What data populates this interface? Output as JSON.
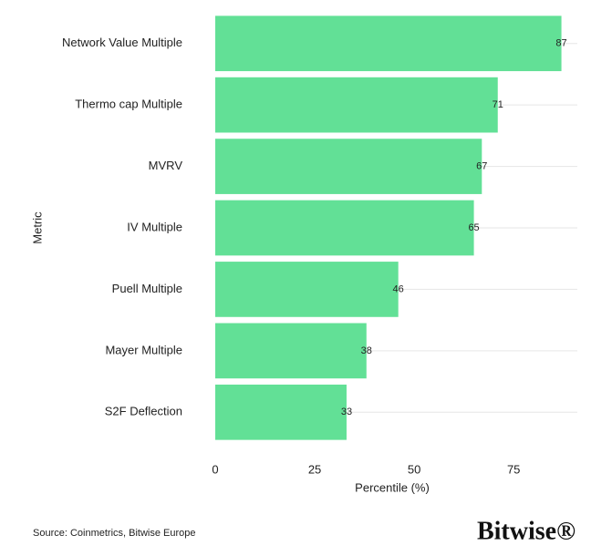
{
  "chart_data": {
    "type": "bar",
    "orientation": "horizontal",
    "categories": [
      "Network Value Multiple",
      "Thermo cap Multiple",
      "MVRV",
      "IV Multiple",
      "Puell Multiple",
      "Mayer Multiple",
      "S2F Deflection"
    ],
    "values": [
      87,
      71,
      67,
      65,
      46,
      38,
      33
    ],
    "color": "#62e096",
    "xlim": [
      0,
      91
    ],
    "xticks": [
      0,
      25,
      50,
      75
    ],
    "x_label": "Percentile (%)",
    "y_label": "Metric",
    "source": "Source: Coinmetrics, Bitwise Europe",
    "logo": "Bitwise®"
  }
}
